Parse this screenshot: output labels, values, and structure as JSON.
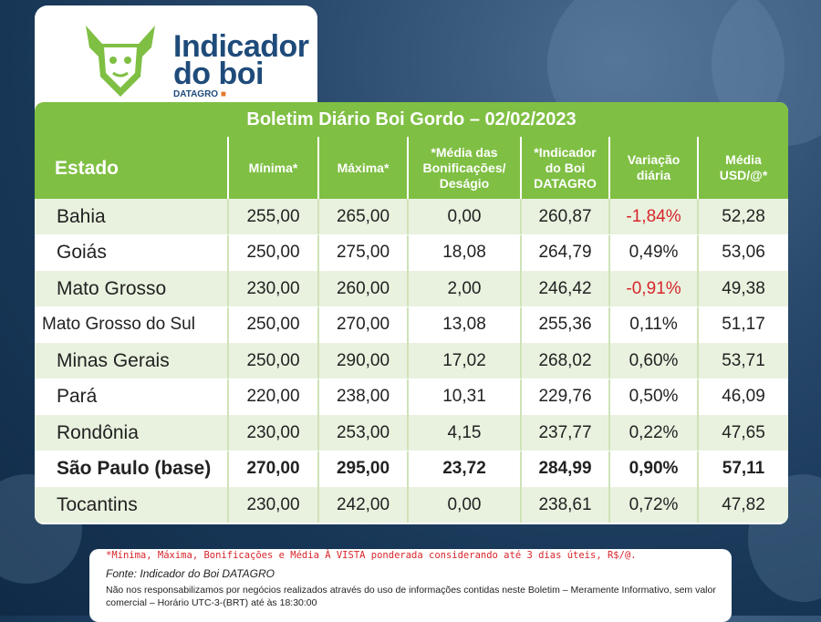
{
  "logo": {
    "line1": "Indicador",
    "line2": "do boi",
    "sub": "DATAGRO"
  },
  "title": "Boletim Diário Boi Gordo – 02/02/2023",
  "headers": {
    "estado": "Estado",
    "minima": "Mínima*",
    "maxima": "Máxima*",
    "bonificacoes": "*Média das Bonificações/ Deságio",
    "indicador": "*Indicador do Boi DATAGRO",
    "variacao": "Variação diária",
    "usd": "Média USD/@*"
  },
  "rows": [
    {
      "estado": "Bahia",
      "minima": "255,00",
      "maxima": "265,00",
      "bonif": "0,00",
      "indicador": "260,87",
      "variacao": "-1,84%",
      "usd": "52,28"
    },
    {
      "estado": "Goiás",
      "minima": "250,00",
      "maxima": "275,00",
      "bonif": "18,08",
      "indicador": "264,79",
      "variacao": "0,49%",
      "usd": "53,06"
    },
    {
      "estado": "Mato Grosso",
      "minima": "230,00",
      "maxima": "260,00",
      "bonif": "2,00",
      "indicador": "246,42",
      "variacao": "-0,91%",
      "usd": "49,38"
    },
    {
      "estado": "Mato Grosso do Sul",
      "minima": "250,00",
      "maxima": "270,00",
      "bonif": "13,08",
      "indicador": "255,36",
      "variacao": "0,11%",
      "usd": "51,17"
    },
    {
      "estado": "Minas Gerais",
      "minima": "250,00",
      "maxima": "290,00",
      "bonif": "17,02",
      "indicador": "268,02",
      "variacao": "0,60%",
      "usd": "53,71"
    },
    {
      "estado": "Pará",
      "minima": "220,00",
      "maxima": "238,00",
      "bonif": "10,31",
      "indicador": "229,76",
      "variacao": "0,50%",
      "usd": "46,09"
    },
    {
      "estado": "Rondônia",
      "minima": "230,00",
      "maxima": "253,00",
      "bonif": "4,15",
      "indicador": "237,77",
      "variacao": "0,22%",
      "usd": "47,65"
    },
    {
      "estado": "São Paulo (base)",
      "minima": "270,00",
      "maxima": "295,00",
      "bonif": "23,72",
      "indicador": "284,99",
      "variacao": "0,90%",
      "usd": "57,11"
    },
    {
      "estado": "Tocantins",
      "minima": "230,00",
      "maxima": "242,00",
      "bonif": "0,00",
      "indicador": "238,61",
      "variacao": "0,72%",
      "usd": "47,82"
    }
  ],
  "footer": {
    "note": "*Mínima, Máxima, Bonificações e Média À VISTA ponderada considerando até 3 dias úteis, R$/@.",
    "source": "Fonte: Indicador do Boi DATAGRO",
    "disclaimer": "Não nos responsabilizamos por negócios realizados através do uso de informações contidas neste Boletim – Meramente Informativo, sem valor comercial – Horário UTC-3-(BRT) até às 18:30:00"
  },
  "colors": {
    "green": "#7fbf43",
    "row_shade": "#e9f2df",
    "negative": "#d8252b",
    "navy": "#1f4b7a"
  }
}
